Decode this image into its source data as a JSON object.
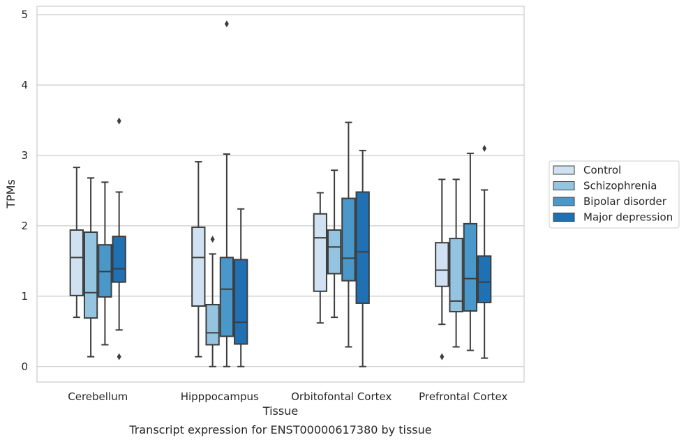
{
  "caption": "Transcript expression for ENST00000617380 by tissue",
  "chart_data": {
    "type": "box",
    "xlabel": "Tissue",
    "ylabel": "TPMs",
    "ylim": [
      -0.22,
      5.12
    ],
    "yticks": [
      0,
      1,
      2,
      3,
      4,
      5
    ],
    "grid": "horizontal",
    "legend_placement": "right",
    "categories": [
      "Cerebellum",
      "Hipppocampus",
      "Orbitofontal Cortex",
      "Prefrontal Cortex"
    ],
    "series": [
      {
        "name": "Control",
        "color": "#d0e1f2",
        "boxes": [
          {
            "whisker_low": 0.7,
            "q1": 1.01,
            "median": 1.55,
            "q3": 1.94,
            "whisker_high": 2.83,
            "outliers": []
          },
          {
            "whisker_low": 0.14,
            "q1": 0.86,
            "median": 1.55,
            "q3": 1.98,
            "whisker_high": 2.91,
            "outliers": []
          },
          {
            "whisker_low": 0.62,
            "q1": 1.07,
            "median": 1.83,
            "q3": 2.17,
            "whisker_high": 2.47,
            "outliers": []
          },
          {
            "whisker_low": 0.6,
            "q1": 1.14,
            "median": 1.37,
            "q3": 1.76,
            "whisker_high": 2.66,
            "outliers": [
              0.14
            ]
          }
        ]
      },
      {
        "name": "Schizophrenia",
        "color": "#94c4df",
        "boxes": [
          {
            "whisker_low": 0.14,
            "q1": 0.69,
            "median": 1.05,
            "q3": 1.91,
            "whisker_high": 2.68,
            "outliers": []
          },
          {
            "whisker_low": 0.0,
            "q1": 0.31,
            "median": 0.48,
            "q3": 0.88,
            "whisker_high": 1.6,
            "outliers": [
              1.81
            ]
          },
          {
            "whisker_low": 0.7,
            "q1": 1.32,
            "median": 1.7,
            "q3": 1.94,
            "whisker_high": 2.79,
            "outliers": []
          },
          {
            "whisker_low": 0.28,
            "q1": 0.78,
            "median": 0.93,
            "q3": 1.82,
            "whisker_high": 2.66,
            "outliers": []
          }
        ]
      },
      {
        "name": "Bipolar disorder",
        "color": "#4a98c9",
        "boxes": [
          {
            "whisker_low": 0.31,
            "q1": 0.99,
            "median": 1.35,
            "q3": 1.73,
            "whisker_high": 2.62,
            "outliers": []
          },
          {
            "whisker_low": 0.0,
            "q1": 0.43,
            "median": 1.1,
            "q3": 1.55,
            "whisker_high": 3.02,
            "outliers": [
              4.87
            ]
          },
          {
            "whisker_low": 0.28,
            "q1": 1.22,
            "median": 1.54,
            "q3": 2.39,
            "whisker_high": 3.47,
            "outliers": []
          },
          {
            "whisker_low": 0.23,
            "q1": 0.79,
            "median": 1.25,
            "q3": 2.03,
            "whisker_high": 3.03,
            "outliers": []
          }
        ]
      },
      {
        "name": "Major depression",
        "color": "#2070b4",
        "boxes": [
          {
            "whisker_low": 0.52,
            "q1": 1.2,
            "median": 1.39,
            "q3": 1.85,
            "whisker_high": 2.48,
            "outliers": [
              3.49,
              0.14
            ]
          },
          {
            "whisker_low": 0.0,
            "q1": 0.32,
            "median": 0.63,
            "q3": 1.52,
            "whisker_high": 2.24,
            "outliers": []
          },
          {
            "whisker_low": 0.0,
            "q1": 0.9,
            "median": 1.63,
            "q3": 2.48,
            "whisker_high": 3.07,
            "outliers": []
          },
          {
            "whisker_low": 0.12,
            "q1": 0.91,
            "median": 1.2,
            "q3": 1.57,
            "whisker_high": 2.51,
            "outliers": [
              3.1
            ]
          }
        ]
      }
    ]
  }
}
